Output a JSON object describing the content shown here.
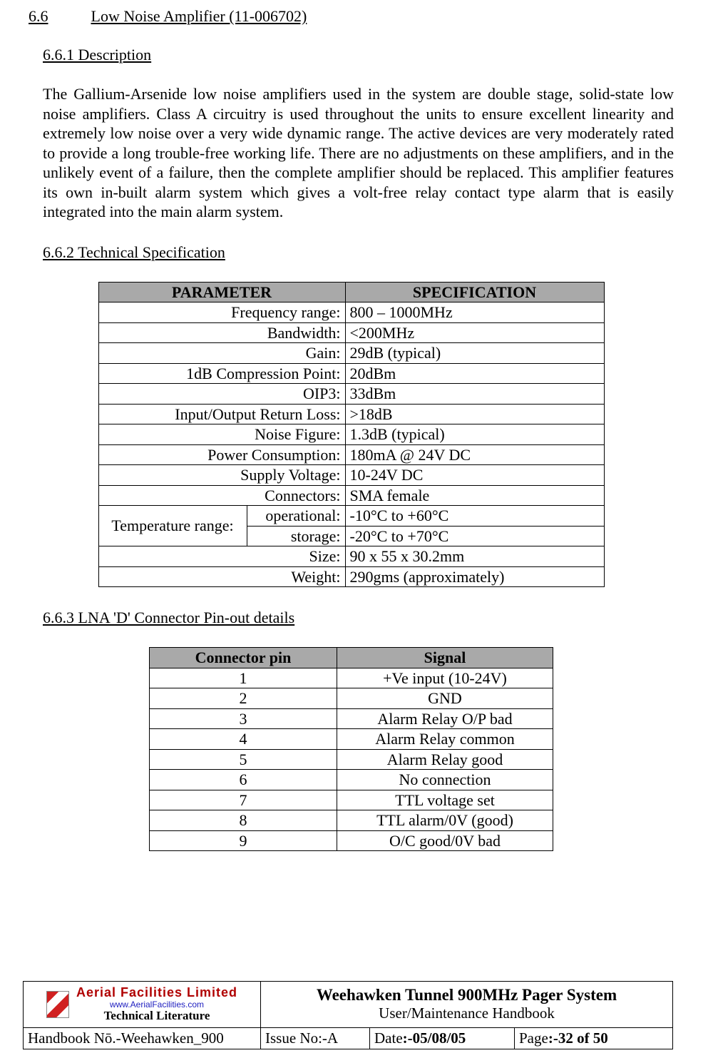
{
  "heading": {
    "num": "6.6",
    "title": "Low Noise Amplifier (11-006702)"
  },
  "sec_desc": {
    "heading": "6.6.1    Description",
    "body": "The Gallium-Arsenide low noise amplifiers used in the system are double stage, solid-state low noise amplifiers. Class A circuitry is used throughout the units to ensure excellent linearity and extremely low noise over a very wide dynamic range. The active devices are very moderately rated to provide a long trouble-free working life. There are no adjustments on these amplifiers, and in the unlikely event of a failure, then the complete amplifier should be replaced. This amplifier features its own in-built alarm system which gives a volt-free relay contact type alarm that is easily integrated into the main alarm system."
  },
  "sec_spec": {
    "heading": "6.6.2    Technical Specification",
    "header_param": "PARAMETER",
    "header_spec": "SPECIFICATION",
    "col_widths": {
      "param": 320,
      "spec": 350
    },
    "header_bg": "#a9a9a9",
    "rows_simple": [
      {
        "param": "Frequency range:",
        "spec": "800 – 1000MHz"
      },
      {
        "param": "Bandwidth:",
        "spec": "<200MHz"
      },
      {
        "param": "Gain:",
        "spec": "29dB (typical)"
      },
      {
        "param": "1dB Compression Point:",
        "spec": "20dBm"
      },
      {
        "param": "OIP3:",
        "spec": "33dBm"
      },
      {
        "param": "Input/Output Return Loss:",
        "spec": ">18dB"
      },
      {
        "param": "Noise Figure:",
        "spec": "1.3dB (typical)"
      },
      {
        "param": "Power Consumption:",
        "spec": "180mA @ 24V DC"
      },
      {
        "param": "Supply Voltage:",
        "spec": "10-24V DC"
      },
      {
        "param": "Connectors:",
        "spec": "SMA female"
      }
    ],
    "temp_row": {
      "label": "Temperature range:",
      "sub": [
        {
          "param": "operational:",
          "spec": "-10°C to +60°C"
        },
        {
          "param": "storage:",
          "spec": "-20°C to +70°C"
        }
      ]
    },
    "rows_after": [
      {
        "param": "Size:",
        "spec": "90 x 55 x 30.2mm"
      },
      {
        "param": "Weight:",
        "spec": "290gms (approximately)"
      }
    ]
  },
  "sec_pinout": {
    "heading": "6.6.3    LNA 'D' Connector Pin-out details",
    "header_pin": "Connector pin",
    "header_sig": "Signal",
    "col_widths": {
      "pin": 250,
      "sig": 290
    },
    "header_bg": "#a9a9a9",
    "rows": [
      {
        "pin": "1",
        "sig": "+Ve input (10-24V)"
      },
      {
        "pin": "2",
        "sig": "GND"
      },
      {
        "pin": "3",
        "sig": "Alarm Relay O/P bad"
      },
      {
        "pin": "4",
        "sig": "Alarm Relay common"
      },
      {
        "pin": "5",
        "sig": "Alarm Relay good"
      },
      {
        "pin": "6",
        "sig": "No connection"
      },
      {
        "pin": "7",
        "sig": "TTL voltage set"
      },
      {
        "pin": "8",
        "sig": "TTL alarm/0V (good)"
      },
      {
        "pin": "9",
        "sig": "O/C good/0V bad"
      }
    ]
  },
  "footer": {
    "logo": {
      "line1": "Aerial  Facilities  Limited",
      "line2": "www.AerialFacilities.com",
      "line3": "Technical Literature"
    },
    "title_strong": "Weehawken Tunnel 900MHz Pager System",
    "title_sub": "User/Maintenance Handbook",
    "handbook_label": " Handbook Nō.-Weehawken_900",
    "issue_label": " Issue No:-A",
    "date_label": " Date",
    "date_value": ":-05/08/05",
    "page_label": " Page",
    "page_value": ":-32 of 50"
  }
}
